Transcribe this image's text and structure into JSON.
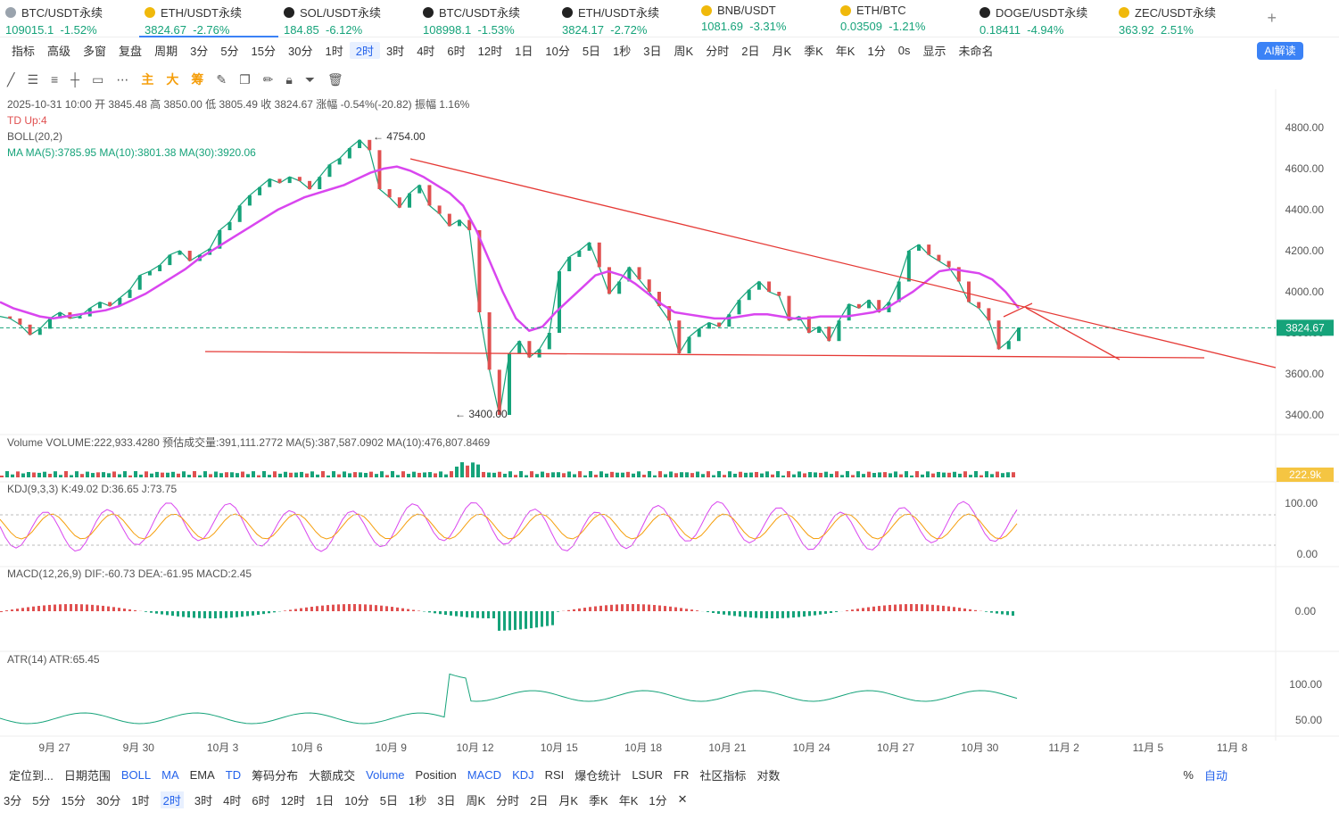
{
  "tickers": [
    {
      "name": "BTC/USDT永续",
      "price": "109015.1",
      "change": "-1.52%",
      "icon": "btc-icon",
      "color": "#9aa3ad",
      "active": false
    },
    {
      "name": "ETH/USDT永续",
      "price": "3824.67",
      "change": "-2.76%",
      "icon": "binance-icon",
      "color": "#f0b90b",
      "active": true
    },
    {
      "name": "SOL/USDT永续",
      "price": "184.85",
      "change": "-6.12%",
      "icon": "okx-icon",
      "color": "#222",
      "active": false
    },
    {
      "name": "BTC/USDT永续",
      "price": "108998.1",
      "change": "-1.53%",
      "icon": "okx-icon",
      "color": "#222",
      "active": false
    },
    {
      "name": "ETH/USDT永续",
      "price": "3824.17",
      "change": "-2.72%",
      "icon": "okx-icon",
      "color": "#222",
      "active": false
    },
    {
      "name": "BNB/USDT",
      "price": "1081.69",
      "change": "-3.31%",
      "icon": "binance-icon",
      "color": "#f0b90b",
      "active": false
    },
    {
      "name": "ETH/BTC",
      "price": "0.03509",
      "change": "-1.21%",
      "icon": "binance-icon",
      "color": "#f0b90b",
      "active": false
    },
    {
      "name": "DOGE/USDT永续",
      "price": "0.18411",
      "change": "-4.94%",
      "icon": "okx-icon",
      "color": "#222",
      "active": false
    },
    {
      "name": "ZEC/USDT永续",
      "price": "363.92",
      "change": "2.51%",
      "icon": "binance-icon",
      "color": "#f0b90b",
      "active": false
    }
  ],
  "toolbar": [
    "指标",
    "高级",
    "多窗",
    "复盘",
    "周期",
    "3分",
    "5分",
    "15分",
    "30分",
    "1时",
    "2时",
    "3时",
    "4时",
    "6时",
    "12时",
    "1日",
    "10分",
    "5日",
    "1秒",
    "3日",
    "周K",
    "分时",
    "2日",
    "月K",
    "季K",
    "年K",
    "1分",
    "0s",
    "显示",
    "未命名"
  ],
  "toolbar_selected": "2时",
  "ai_label": "AI解读",
  "indicator_tools": [
    "主",
    "大",
    "筹"
  ],
  "legend": {
    "ohlc": "2025-10-31 10:00  开 3845.48  高 3850.00  低 3805.49  收 3824.67  涨幅 -0.54%(-20.82)  振幅 1.16%",
    "td": "TD  Up:4",
    "boll": "BOLL(20,2)",
    "ma": "MA   MA(5):3785.95   MA(10):3801.38   MA(30):3920.06"
  },
  "volume_legend": "Volume  VOLUME:222,933.4280  预估成交量:391,111.2772  MA(5):387,587.0902  MA(10):476,807.8469",
  "kdj_legend": "KDJ(9,3,3)  K:49.02  D:36.65  J:73.75",
  "macd_legend": "MACD(12,26,9)  DIF:-60.73  DEA:-61.95  MACD:2.45",
  "atr_legend": "ATR(14)  ATR:65.45",
  "chart_data": {
    "type": "line",
    "main_y_ticks": [
      4800,
      4600,
      4400,
      4200,
      4000,
      3800,
      3600,
      3400
    ],
    "last_price": "3824.67",
    "high_label": "4754.00",
    "low_label": "3400.00",
    "volume_label": "222.9k",
    "kdj_ticks": [
      "100.00",
      "0.00"
    ],
    "macd_ticks": [
      "0.00"
    ],
    "atr_ticks": [
      "100.00",
      "50.00"
    ],
    "x_labels": [
      "9月 27",
      "9月 30",
      "10月 3",
      "10月 6",
      "10月 9",
      "10月 12",
      "10月 15",
      "10月 18",
      "10月 21",
      "10月 24",
      "10月 27",
      "10月 30",
      "11月 2",
      "11月 5",
      "11月 8"
    ],
    "price_path": [
      3880,
      3870,
      3840,
      3790,
      3820,
      3870,
      3900,
      3870,
      3880,
      3920,
      3950,
      3930,
      3970,
      4010,
      4080,
      4100,
      4130,
      4180,
      4200,
      4150,
      4180,
      4210,
      4300,
      4340,
      4420,
      4470,
      4510,
      4550,
      4530,
      4560,
      4540,
      4500,
      4560,
      4620,
      4650,
      4700,
      4740,
      4690,
      4500,
      4460,
      4410,
      4480,
      4520,
      4420,
      4380,
      4320,
      4350,
      4300,
      3900,
      3620,
      3400,
      3700,
      3760,
      3680,
      3720,
      3800,
      4100,
      4170,
      4200,
      4240,
      4120,
      3990,
      4050,
      4120,
      4060,
      4000,
      3930,
      3860,
      3700,
      3780,
      3820,
      3850,
      3830,
      3890,
      3960,
      4010,
      4050,
      4000,
      3980,
      3860,
      3880,
      3800,
      3830,
      3760,
      3860,
      3940,
      3920,
      3960,
      3900,
      3950,
      4050,
      4200,
      4230,
      4180,
      4150,
      4120,
      4050,
      3950,
      3920,
      3860,
      3720,
      3760,
      3824.67
    ],
    "ma30_path": [
      3950,
      3920,
      3900,
      3880,
      3870,
      3880,
      3890,
      3900,
      3910,
      3930,
      3960,
      3990,
      4030,
      4070,
      4110,
      4160,
      4200,
      4240,
      4280,
      4320,
      4360,
      4400,
      4430,
      4460,
      4480,
      4500,
      4520,
      4550,
      4580,
      4600,
      4610,
      4590,
      4560,
      4520,
      4480,
      4420,
      4300,
      4150,
      4000,
      3870,
      3810,
      3830,
      3900,
      3960,
      4020,
      4080,
      4100,
      4080,
      4040,
      3990,
      3940,
      3900,
      3890,
      3880,
      3870,
      3870,
      3880,
      3890,
      3890,
      3880,
      3870,
      3870,
      3880,
      3880,
      3880,
      3890,
      3900,
      3920,
      3960,
      4000,
      4050,
      4100,
      4110,
      4100,
      4090,
      4060,
      4000,
      3920
    ],
    "triangle_top": {
      "from": [
        460,
        178
      ],
      "to": [
        1430,
        412
      ]
    },
    "support_line": {
      "from": [
        230,
        394
      ],
      "to": [
        1350,
        401
      ]
    },
    "arrows": [
      [
        1150,
        345,
        1255,
        403
      ],
      [
        1125,
        355,
        1157,
        340
      ]
    ]
  },
  "bottom_indicators": [
    "定位到...",
    "日期范围",
    "BOLL",
    "MA",
    "EMA",
    "TD",
    "筹码分布",
    "大额成交",
    "Volume",
    "Position",
    "MACD",
    "KDJ",
    "RSI",
    "爆仓统计",
    "LSUR",
    "FR",
    "社区指标",
    "对数",
    "%",
    "自动"
  ],
  "bottom_periods": [
    "3分",
    "5分",
    "15分",
    "30分",
    "1时",
    "2时",
    "3时",
    "4时",
    "6时",
    "12时",
    "1日",
    "10分",
    "5日",
    "1秒",
    "3日",
    "周K",
    "分时",
    "2日",
    "月K",
    "季K",
    "年K",
    "1分"
  ]
}
